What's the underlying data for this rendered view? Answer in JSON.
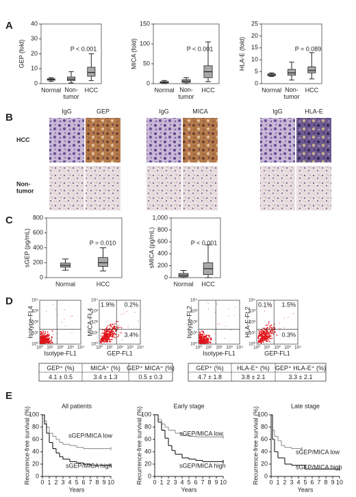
{
  "panels": [
    "A",
    "B",
    "C",
    "D",
    "E"
  ],
  "chart_data": [
    {
      "type": "box",
      "y_label": "GEP (fold)",
      "categories": [
        "Normal",
        "Non-\ntumor",
        "HCC"
      ],
      "ylim": [
        0,
        40
      ],
      "yticks": [
        0,
        10,
        20,
        30,
        40
      ],
      "annotation": "P < 0.001",
      "boxes": {
        "min": [
          1.5,
          0.5,
          2
        ],
        "q1": [
          2.3,
          2,
          5
        ],
        "median": [
          2.8,
          3,
          7.5
        ],
        "q3": [
          3.3,
          4.5,
          11
        ],
        "max": [
          4,
          8,
          20
        ]
      }
    },
    {
      "type": "box",
      "y_label": "MICA (fold)",
      "categories": [
        "Normal",
        "Non-\ntumor",
        "HCC"
      ],
      "ylim": [
        0,
        150
      ],
      "yticks": [
        0,
        50,
        100,
        150
      ],
      "annotation": "P < 0.001",
      "boxes": {
        "min": [
          0,
          0,
          5
        ],
        "q1": [
          2,
          3,
          15
        ],
        "median": [
          3,
          6,
          30
        ],
        "q3": [
          5,
          10,
          45
        ],
        "max": [
          8,
          15,
          105
        ]
      }
    },
    {
      "type": "box",
      "y_label": "HLA-E (fold)",
      "categories": [
        "Normal",
        "Non-\ntumor",
        "HCC"
      ],
      "ylim": [
        0,
        25
      ],
      "yticks": [
        0,
        5,
        10,
        15,
        20,
        25
      ],
      "annotation": "P = 0.089",
      "boxes": {
        "min": [
          3,
          1.5,
          2
        ],
        "q1": [
          3.3,
          3.5,
          4.5
        ],
        "median": [
          3.7,
          4.5,
          5.5
        ],
        "q3": [
          4.1,
          6,
          7
        ],
        "max": [
          4.5,
          9,
          13
        ]
      }
    },
    {
      "type": "box",
      "y_label": "sGEP (pg/mL)",
      "categories": [
        "Normal",
        "HCC"
      ],
      "ylim": [
        0,
        800
      ],
      "yticks": [
        0,
        200,
        400,
        600,
        800
      ],
      "annotation": "P = 0.010",
      "boxes": {
        "min": [
          100,
          90
        ],
        "q1": [
          140,
          150
        ],
        "median": [
          165,
          200
        ],
        "q3": [
          195,
          270
        ],
        "max": [
          250,
          400
        ]
      }
    },
    {
      "type": "box",
      "y_label": "sMICA (pg/mL)",
      "categories": [
        "Normal",
        "HCC"
      ],
      "ylim": [
        0,
        1000
      ],
      "yticks": [
        0,
        200,
        400,
        600,
        800,
        {
          "value": 1000,
          "label": "1,000"
        }
      ],
      "annotation": "P < 0.001",
      "boxes": {
        "min": [
          0,
          0
        ],
        "q1": [
          15,
          50
        ],
        "median": [
          40,
          150
        ],
        "q3": [
          70,
          250
        ],
        "max": [
          120,
          550
        ]
      }
    },
    {
      "type": "km",
      "title": "All patients",
      "y_label": "Recurrence-free survival (%)",
      "x_label": "Years",
      "xlim": [
        0,
        10
      ],
      "xticks": [
        0,
        1,
        2,
        3,
        4,
        5,
        6,
        7,
        8,
        9,
        10
      ],
      "ylim": [
        0,
        100
      ],
      "yticks": [
        0,
        20,
        40,
        60,
        80,
        100
      ],
      "series": [
        {
          "name": "sGEP/MICA low",
          "color": "#888888",
          "x": [
            0,
            0.3,
            0.6,
            1,
            1.5,
            2,
            2.5,
            3,
            4,
            5,
            6,
            10
          ],
          "values": [
            100,
            90,
            80,
            70,
            65,
            60,
            55,
            52,
            50,
            47,
            45,
            45
          ]
        },
        {
          "name": "sGEP/MICA high",
          "color": "#000000",
          "x": [
            0,
            0.3,
            0.6,
            1,
            1.5,
            2,
            2.5,
            3,
            4,
            5,
            6,
            7,
            10
          ],
          "values": [
            100,
            85,
            70,
            55,
            45,
            38,
            32,
            28,
            24,
            22,
            20,
            18,
            18
          ]
        }
      ]
    },
    {
      "type": "km",
      "title": "Early stage",
      "y_label": "Recurrence-free survival (%)",
      "x_label": "Years",
      "xlim": [
        0,
        10
      ],
      "xticks": [
        0,
        1,
        2,
        3,
        4,
        5,
        6,
        7,
        8,
        9,
        10
      ],
      "ylim": [
        0,
        100
      ],
      "yticks": [
        0,
        20,
        40,
        60,
        80,
        100
      ],
      "series": [
        {
          "name": "sGEP/MICA low",
          "color": "#888888",
          "x": [
            0,
            0.5,
            1,
            1.5,
            2,
            3,
            4,
            5,
            6,
            10
          ],
          "values": [
            100,
            92,
            85,
            80,
            75,
            70,
            66,
            65,
            64,
            64
          ]
        },
        {
          "name": "sGEP/MICA high",
          "color": "#000000",
          "x": [
            0,
            0.5,
            1,
            1.5,
            2,
            2.5,
            3,
            4,
            5,
            6,
            7,
            10
          ],
          "values": [
            100,
            88,
            75,
            62,
            50,
            42,
            36,
            30,
            28,
            26,
            24,
            24
          ]
        }
      ]
    },
    {
      "type": "km",
      "title": "Late stage",
      "y_label": "Recurrence-free survival (%)",
      "x_label": "Years",
      "xlim": [
        0,
        10
      ],
      "xticks": [
        0,
        1,
        2,
        3,
        4,
        5,
        6,
        7,
        8,
        9,
        10
      ],
      "ylim": [
        0,
        100
      ],
      "yticks": [
        0,
        20,
        40,
        60,
        80,
        100
      ],
      "series": [
        {
          "name": "sGEP/MICA low",
          "color": "#888888",
          "x": [
            0,
            0.2,
            0.5,
            1,
            1.5,
            2,
            3,
            4.5
          ],
          "values": [
            100,
            75,
            65,
            58,
            50,
            47,
            45,
            45
          ]
        },
        {
          "name": "sGEP/MICA high",
          "color": "#000000",
          "x": [
            0,
            0.2,
            0.5,
            1,
            2,
            3,
            5,
            7,
            10
          ],
          "values": [
            100,
            60,
            40,
            30,
            20,
            18,
            12,
            12,
            12
          ]
        }
      ]
    }
  ],
  "micrographs": {
    "columns": [
      "IgG",
      "GEP",
      "IgG",
      "MICA",
      "IgG",
      "HLA-E"
    ],
    "rows": [
      "HCC",
      "Non-\ntumor"
    ]
  },
  "flow_plots": {
    "tick_labels": [
      "10⁰",
      "10¹",
      "10²",
      "10³",
      "10⁴"
    ],
    "plots": [
      {
        "y_label": "Isotype-FL4",
        "x_label": "Isotype-FL1"
      },
      {
        "y_label": "MICA-FL4",
        "x_label": "GEP-FL1",
        "quadrants": [
          "1.9%",
          "0.2%",
          "3.4%"
        ]
      },
      {
        "y_label": "Isotype-FL2",
        "x_label": "Isotype-FL1"
      },
      {
        "y_label": "HLA-E-FL2",
        "x_label": "GEP-FL1",
        "quadrants": [
          "0.1%",
          "1.5%",
          "0.3%"
        ]
      }
    ]
  },
  "tables": [
    {
      "header": [
        "GEP⁺ (%)",
        "MICA⁺ (%)",
        "GEP⁺ MICA⁺ (%)"
      ],
      "row": [
        "4.1 ± 0.5",
        "3.4 ± 1.3",
        "0.5 ± 0.3"
      ]
    },
    {
      "header": [
        "GEP⁺ (%)",
        "HLA-E⁺ (%)",
        "GEP⁺ HLA-E⁺ (%)"
      ],
      "row": [
        "4.7 ± 1.8",
        "3.8 ± 2.1",
        "3.3 ± 2.1"
      ]
    }
  ]
}
